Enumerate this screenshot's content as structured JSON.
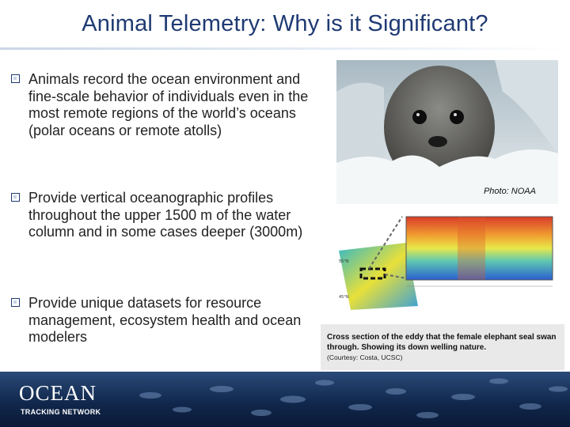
{
  "slide": {
    "title": "Animal Telemetry: Why is it Significant?"
  },
  "bullets": [
    {
      "text": "Animals record the ocean environment and fine-scale behavior of individuals even in the most remote regions of the world’s oceans (polar oceans or remote atolls)"
    },
    {
      "text": "Provide vertical oceanographic profiles throughout the upper 1500 m of the water column and in some cases deeper (3000m)"
    },
    {
      "text": "Provide unique datasets for resource management, ecosystem health and ocean modelers"
    }
  ],
  "photo": {
    "credit": "Photo: NOAA"
  },
  "figure": {
    "caption": "Cross section of the eddy that the female elephant seal swan through.  Showing its down welling nature.",
    "courtesy": "(Courtesy: Costa, UCSC)"
  },
  "footer": {
    "logo_word": "OCEAN",
    "logo_sub": "TRACKING NETWORK"
  },
  "colors": {
    "title": "#1f3a73",
    "footer": "#10264a",
    "caption_bg": "#e9e9e9"
  }
}
